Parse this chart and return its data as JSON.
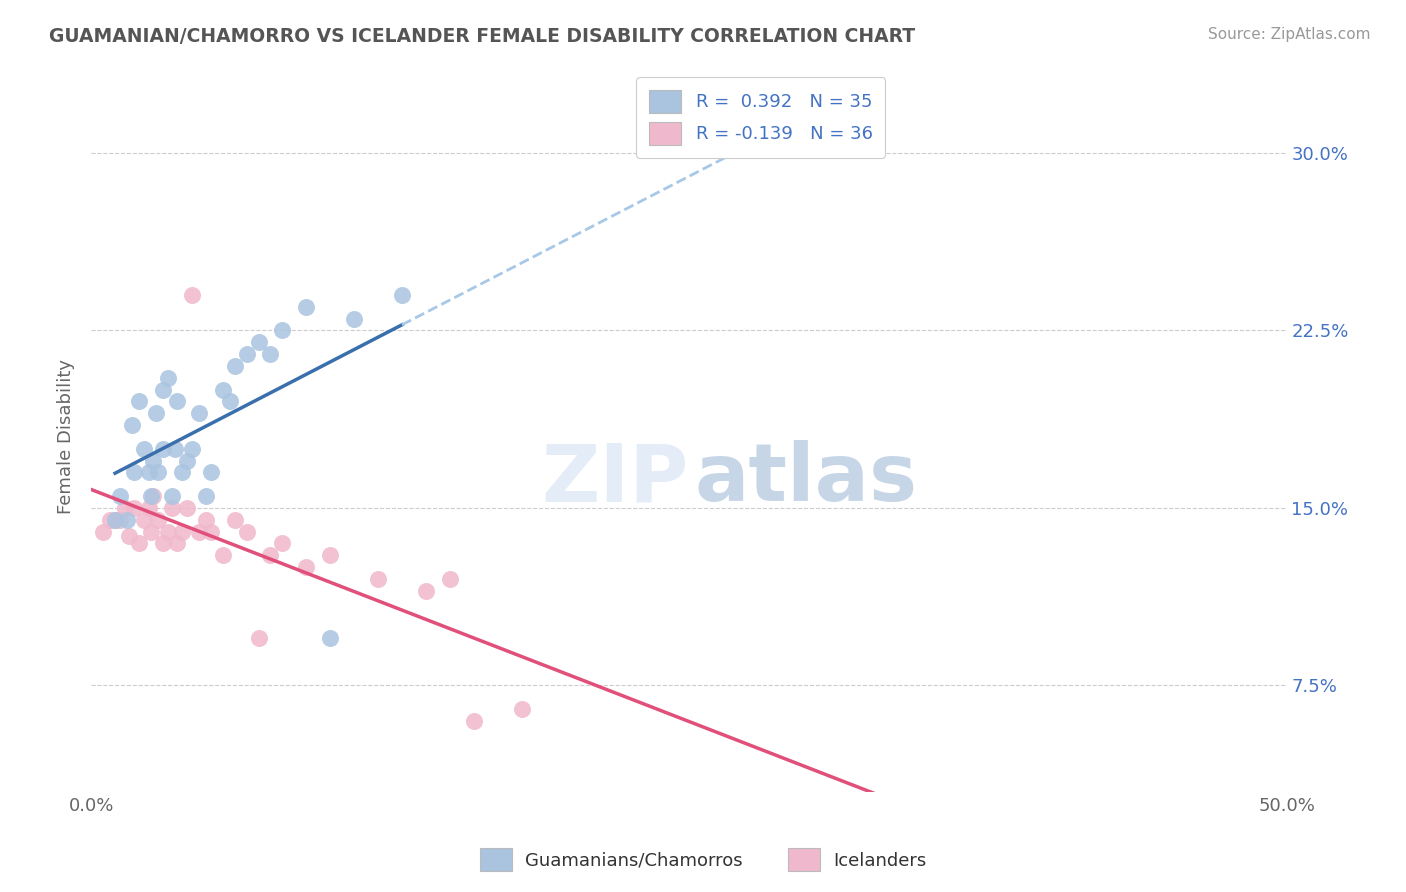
{
  "title": "GUAMANIAN/CHAMORRO VS ICELANDER FEMALE DISABILITY CORRELATION CHART",
  "source": "Source: ZipAtlas.com",
  "ylabel": "Female Disability",
  "xlim": [
    0.0,
    0.5
  ],
  "ylim": [
    0.03,
    0.33
  ],
  "ytick_labels": [
    "7.5%",
    "15.0%",
    "22.5%",
    "30.0%"
  ],
  "ytick_vals": [
    0.075,
    0.15,
    0.225,
    0.3
  ],
  "legend_r1": "R =  0.392   N = 35",
  "legend_r2": "R = -0.139   N = 36",
  "blue_color": "#aac4e0",
  "pink_color": "#f0b8cc",
  "blue_line_color": "#3a6fad",
  "pink_line_color": "#e0507a",
  "dashed_line_color": "#a8c8e8",
  "guamanian_x": [
    0.01,
    0.012,
    0.015,
    0.017,
    0.018,
    0.02,
    0.022,
    0.024,
    0.025,
    0.026,
    0.027,
    0.028,
    0.03,
    0.03,
    0.032,
    0.034,
    0.035,
    0.036,
    0.038,
    0.04,
    0.042,
    0.045,
    0.048,
    0.05,
    0.055,
    0.058,
    0.06,
    0.065,
    0.07,
    0.075,
    0.08,
    0.09,
    0.1,
    0.11,
    0.13
  ],
  "guamanian_y": [
    0.145,
    0.155,
    0.145,
    0.185,
    0.165,
    0.195,
    0.175,
    0.165,
    0.155,
    0.17,
    0.19,
    0.165,
    0.2,
    0.175,
    0.205,
    0.155,
    0.175,
    0.195,
    0.165,
    0.17,
    0.175,
    0.19,
    0.155,
    0.165,
    0.2,
    0.195,
    0.21,
    0.215,
    0.22,
    0.215,
    0.225,
    0.235,
    0.095,
    0.23,
    0.24
  ],
  "icelander_x": [
    0.005,
    0.008,
    0.01,
    0.012,
    0.014,
    0.016,
    0.018,
    0.02,
    0.022,
    0.024,
    0.025,
    0.026,
    0.028,
    0.03,
    0.032,
    0.034,
    0.036,
    0.038,
    0.04,
    0.042,
    0.045,
    0.048,
    0.05,
    0.055,
    0.06,
    0.065,
    0.07,
    0.075,
    0.08,
    0.09,
    0.1,
    0.12,
    0.14,
    0.15,
    0.16,
    0.18
  ],
  "icelander_y": [
    0.14,
    0.145,
    0.145,
    0.145,
    0.15,
    0.138,
    0.15,
    0.135,
    0.145,
    0.15,
    0.14,
    0.155,
    0.145,
    0.135,
    0.14,
    0.15,
    0.135,
    0.14,
    0.15,
    0.24,
    0.14,
    0.145,
    0.14,
    0.13,
    0.145,
    0.14,
    0.095,
    0.13,
    0.135,
    0.125,
    0.13,
    0.12,
    0.115,
    0.12,
    0.06,
    0.065
  ]
}
